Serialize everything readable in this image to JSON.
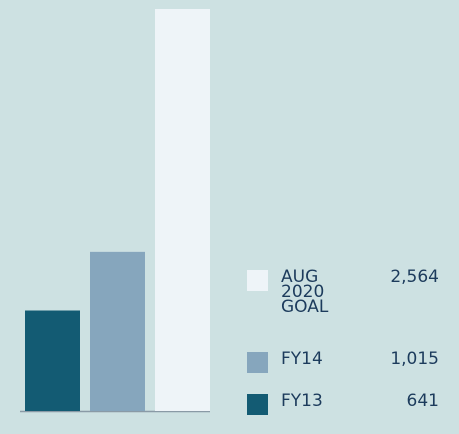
{
  "chart_data": {
    "type": "bar",
    "categories": [
      "FY13",
      "FY14",
      "AUG 2020 GOAL"
    ],
    "values": [
      641,
      1015,
      2564
    ],
    "value_labels": [
      "641",
      "1,015",
      "2,564"
    ],
    "colors": [
      "#135b73",
      "#86a6bd",
      "#eef4f8"
    ]
  }
}
